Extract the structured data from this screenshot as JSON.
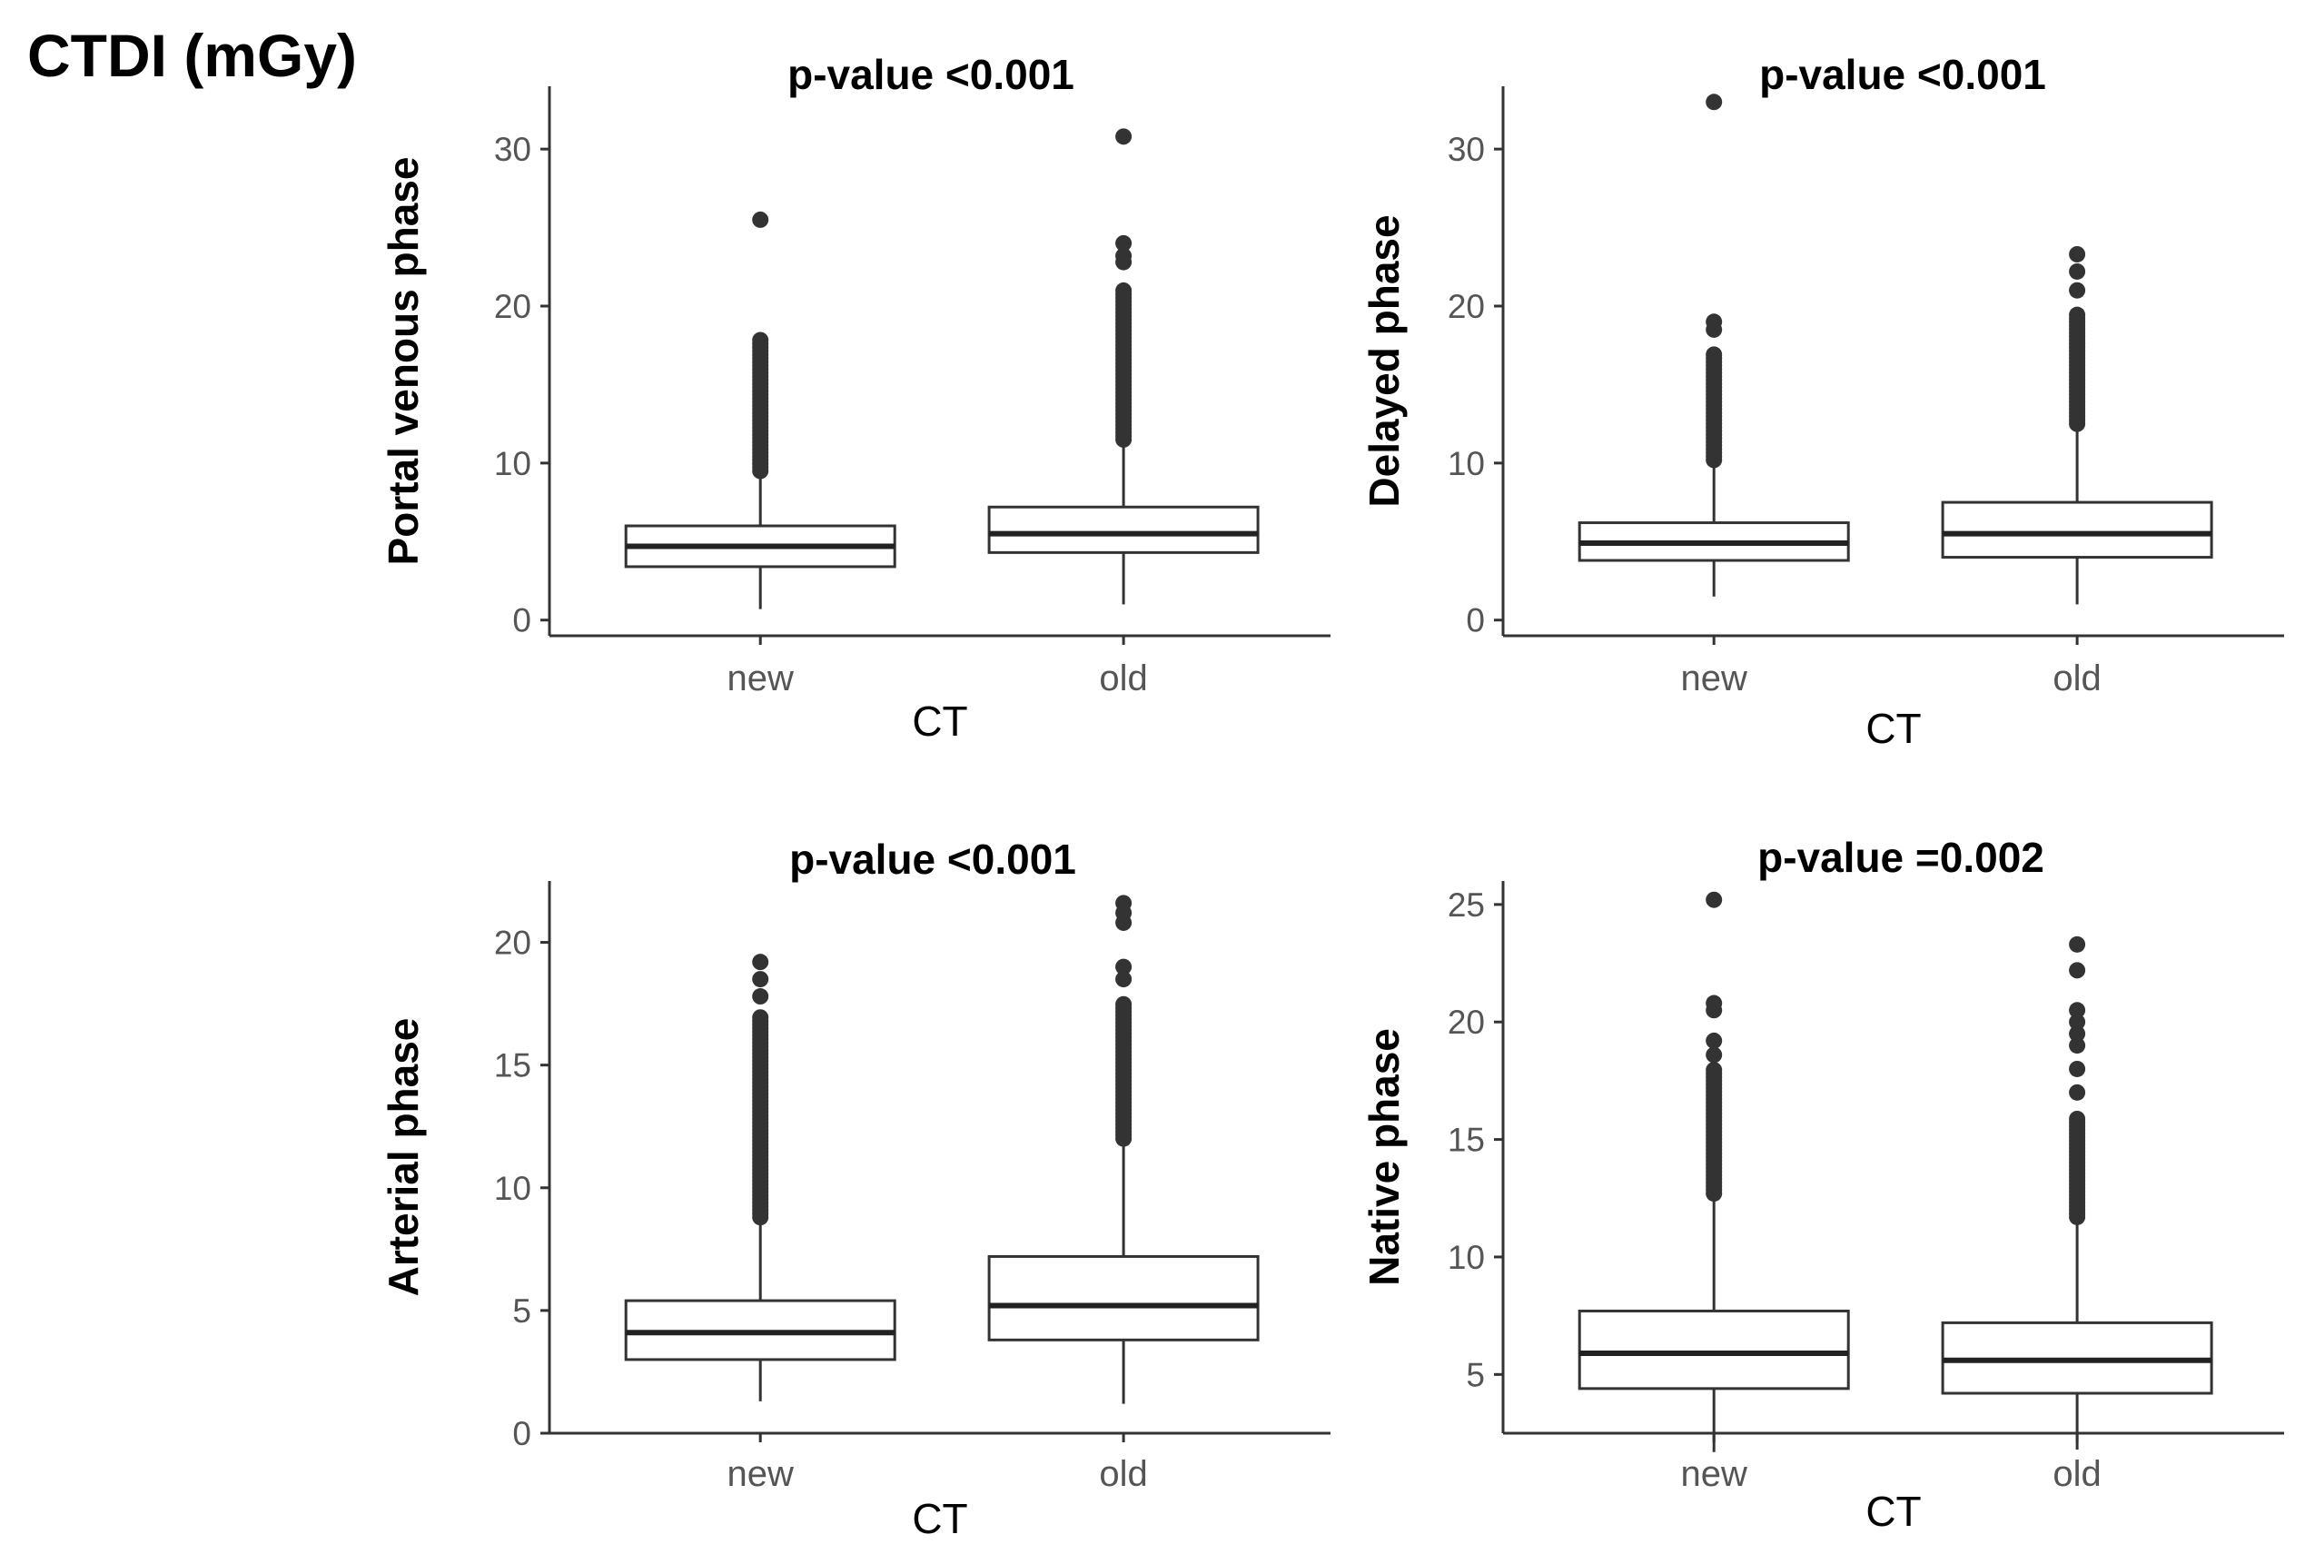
{
  "figure_title": "CTDI (mGy)",
  "chart_data": [
    {
      "type": "box",
      "title": "p-value <0.001",
      "xlabel": "CT",
      "ylabel": "Portal venous phase",
      "categories": [
        "new",
        "old"
      ],
      "ylim": [
        -1,
        34
      ],
      "yticks": [
        0,
        10,
        20,
        30
      ],
      "boxes": [
        {
          "category": "new",
          "q1": 3.4,
          "median": 4.7,
          "q3": 6.0,
          "whisker_low": 0.7,
          "whisker_high": 9.5,
          "outliers_range": [
            9.5,
            18.0
          ],
          "outliers": [
            25.5
          ]
        },
        {
          "category": "old",
          "q1": 4.3,
          "median": 5.5,
          "q3": 7.2,
          "whisker_low": 1.0,
          "whisker_high": 11.5,
          "outliers_range": [
            11.5,
            21.0
          ],
          "outliers": [
            22.8,
            23.2,
            24.0,
            30.8
          ]
        }
      ]
    },
    {
      "type": "box",
      "title": "p-value <0.001",
      "xlabel": "CT",
      "ylabel": "Delayed phase",
      "categories": [
        "new",
        "old"
      ],
      "ylim": [
        -1,
        34
      ],
      "yticks": [
        0,
        10,
        20,
        30
      ],
      "boxes": [
        {
          "category": "new",
          "q1": 3.8,
          "median": 4.9,
          "q3": 6.2,
          "whisker_low": 1.5,
          "whisker_high": 10.2,
          "outliers_range": [
            10.2,
            17.0
          ],
          "outliers": [
            18.5,
            19.0,
            33.0
          ]
        },
        {
          "category": "old",
          "q1": 4.0,
          "median": 5.5,
          "q3": 7.5,
          "whisker_low": 1.0,
          "whisker_high": 12.5,
          "outliers_range": [
            12.5,
            19.5
          ],
          "outliers": [
            21.0,
            22.2,
            23.3
          ]
        }
      ]
    },
    {
      "type": "box",
      "title": "p-value <0.001",
      "xlabel": "CT",
      "ylabel": "Arterial phase",
      "categories": [
        "new",
        "old"
      ],
      "ylim": [
        0,
        22.5
      ],
      "yticks": [
        0,
        5,
        10,
        15,
        20
      ],
      "boxes": [
        {
          "category": "new",
          "q1": 3.0,
          "median": 4.1,
          "q3": 5.4,
          "whisker_low": 1.3,
          "whisker_high": 8.8,
          "outliers_range": [
            8.8,
            17.0
          ],
          "outliers": [
            17.8,
            18.5,
            19.2
          ]
        },
        {
          "category": "old",
          "q1": 3.8,
          "median": 5.2,
          "q3": 7.2,
          "whisker_low": 1.2,
          "whisker_high": 12.0,
          "outliers_range": [
            12.0,
            17.5
          ],
          "outliers": [
            18.5,
            19.0,
            20.8,
            21.2,
            21.6
          ]
        }
      ]
    },
    {
      "type": "box",
      "title": "p-value =0.002",
      "xlabel": "CT",
      "ylabel": "Native phase",
      "categories": [
        "new",
        "old"
      ],
      "ylim": [
        2.5,
        26
      ],
      "yticks": [
        5,
        10,
        15,
        20,
        25
      ],
      "boxes": [
        {
          "category": "new",
          "q1": 4.4,
          "median": 5.9,
          "q3": 7.7,
          "whisker_low": 1.7,
          "whisker_high": 12.7,
          "outliers_range": [
            12.7,
            18.0
          ],
          "outliers": [
            18.6,
            19.2,
            20.5,
            20.8,
            25.2
          ]
        },
        {
          "category": "old",
          "q1": 4.2,
          "median": 5.6,
          "q3": 7.2,
          "whisker_low": 1.8,
          "whisker_high": 11.7,
          "outliers_range": [
            11.7,
            16.0
          ],
          "outliers": [
            17.0,
            18.0,
            19.0,
            19.5,
            20.0,
            20.5,
            22.2,
            23.3
          ]
        }
      ]
    }
  ]
}
